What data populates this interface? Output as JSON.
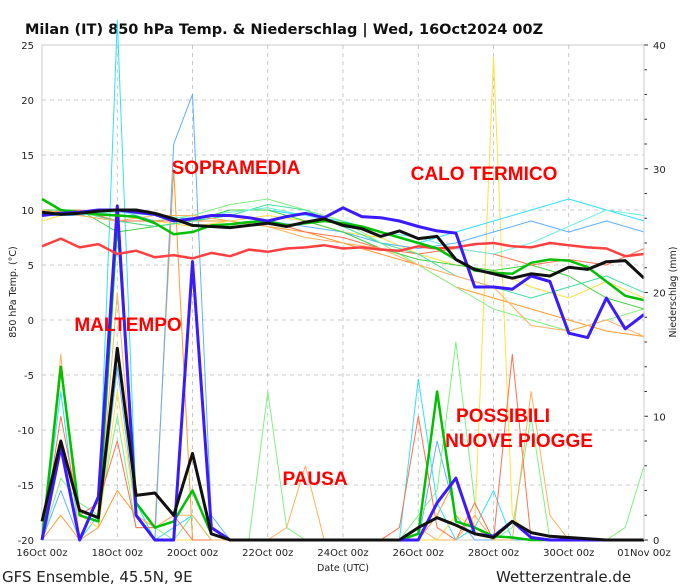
{
  "chart_data": {
    "type": "line",
    "title": "Milan  (IT)  850 hPa Temp. & Niederschlag | Wed, 16Oct2024 00Z",
    "xlabel": "Date (UTC)",
    "ylabel": "850 hPa Temp. (°C)",
    "y2label": "Niederschlag (mm)",
    "footer_left": "GFS Ensemble, 45.5N, 9E",
    "footer_right": "Wetterzentrale.de",
    "xlim_days": [
      0,
      16
    ],
    "x_step_days": 0.5,
    "xticks": [
      "16Oct 00z",
      "18Oct 00z",
      "20Oct 00z",
      "22Oct 00z",
      "24Oct 00z",
      "26Oct 00z",
      "28Oct 00z",
      "30Oct 00z",
      "01Nov 00z"
    ],
    "ylim": [
      -20,
      25
    ],
    "yticks": [
      "25",
      "20",
      "15",
      "10",
      "5",
      "0",
      "-5",
      "-10",
      "-15",
      "-20"
    ],
    "y2lim": [
      0,
      40
    ],
    "y2ticks": [
      "40",
      "30",
      "20",
      "10",
      "0"
    ],
    "grid": true,
    "annotations": [
      "SOPRAMEDIA",
      "CALO TERMICO",
      "MALTEMPO",
      "POSSIBILI",
      "NUOVE PIOGGE",
      "PAUSA"
    ],
    "annotation_color": "#ff0000",
    "temp_series": [
      {
        "name": "climatology",
        "color": "#ff4040",
        "width": 2.5,
        "values": [
          6.7,
          7.4,
          6.6,
          6.9,
          6,
          6.3,
          5.7,
          5.9,
          5.6,
          6.1,
          5.8,
          6.4,
          6.2,
          6.5,
          6.6,
          6.8,
          6.5,
          6.6,
          6.4,
          6.3,
          6.7,
          6.5,
          6.6,
          6.9,
          7,
          6.7,
          6.6,
          7,
          6.8,
          6.6,
          6.5,
          5.8,
          6
        ]
      },
      {
        "name": "mean",
        "color": "#00c000",
        "width": 2.5,
        "values": [
          11,
          10,
          9.8,
          9.6,
          9.5,
          9.4,
          8.8,
          7.8,
          8,
          8.6,
          8.7,
          8.9,
          9,
          8.6,
          8.8,
          9,
          8.8,
          8.5,
          8,
          7.5,
          7,
          6.5,
          5.5,
          4.5,
          4.3,
          4.2,
          5.2,
          5.5,
          5.4,
          4.8,
          3.5,
          2.2,
          1.8
        ]
      },
      {
        "name": "operational",
        "color": "#3a1aff",
        "width": 3,
        "values": [
          9.5,
          9.7,
          9.8,
          10,
          10,
          9.8,
          9.6,
          9,
          9.2,
          9.5,
          9.5,
          9.3,
          9,
          9.4,
          9.7,
          9.3,
          10.2,
          9.4,
          9.3,
          9,
          8.5,
          8.1,
          7.9,
          3,
          3,
          2.8,
          4,
          3.5,
          -1.2,
          -1.6,
          2,
          -0.8,
          0.5
        ]
      },
      {
        "name": "control",
        "color": "#111111",
        "width": 3,
        "values": [
          9.8,
          9.6,
          9.7,
          9.9,
          10,
          10,
          9.7,
          9.2,
          8.6,
          8.5,
          8.4,
          8.6,
          8.8,
          8.5,
          8.9,
          9.2,
          8.6,
          8.3,
          7.6,
          8.1,
          7.4,
          7.6,
          5.5,
          4.6,
          4.2,
          3.8,
          4.2,
          4,
          4.8,
          4.6,
          5.3,
          5.4,
          3.8
        ]
      }
    ],
    "member_temp_step_days": 1,
    "member_temps": [
      {
        "color": "#ff9a30",
        "values": [
          10,
          10,
          9,
          8.5,
          9,
          9,
          8.5,
          8,
          7,
          6,
          5,
          3,
          2,
          1,
          0,
          -1,
          -1.5
        ]
      },
      {
        "color": "#30e0ff",
        "values": [
          9.5,
          10,
          9.5,
          9,
          9,
          10,
          10,
          9.5,
          9,
          8,
          7,
          8,
          9,
          10,
          11,
          10,
          9
        ]
      },
      {
        "color": "#80f080",
        "values": [
          10,
          9.5,
          9,
          9,
          9.5,
          10.5,
          11,
          10,
          9,
          7,
          5,
          3,
          1,
          0,
          -1,
          0,
          1
        ]
      },
      {
        "color": "#ffe040",
        "values": [
          9,
          10,
          9.5,
          9,
          8.5,
          9,
          9.5,
          9,
          8,
          7.5,
          6,
          5,
          4.5,
          3,
          2,
          3.5,
          2
        ]
      },
      {
        "color": "#60b0ff",
        "values": [
          9.5,
          9.5,
          10,
          9,
          9,
          9.5,
          9,
          8.5,
          8,
          7,
          6.5,
          7,
          8,
          9,
          8,
          9,
          8
        ]
      },
      {
        "color": "#40d040",
        "values": [
          10,
          10,
          8,
          8.5,
          9,
          10,
          10,
          9,
          8,
          6.5,
          5.5,
          5,
          4.5,
          5,
          4,
          2,
          1
        ]
      },
      {
        "color": "#ff7050",
        "values": [
          9.8,
          10,
          9,
          9,
          9,
          9.5,
          9,
          8,
          7.5,
          6.5,
          6,
          6.5,
          6,
          5,
          5.5,
          5,
          6.5
        ]
      },
      {
        "color": "#40e0a0",
        "values": [
          9.5,
          9.8,
          9,
          8.5,
          9,
          9.5,
          10.5,
          10,
          8.5,
          7,
          6,
          4,
          3,
          2,
          3,
          4,
          2.5
        ]
      },
      {
        "color": "#ffb060",
        "values": [
          10,
          9.5,
          9,
          9.5,
          9.5,
          9,
          8.5,
          7.5,
          7,
          6.5,
          5,
          4,
          3,
          -0.5,
          -1,
          0,
          -1.5
        ]
      },
      {
        "color": "#70f0e0",
        "values": [
          9.6,
          9.6,
          9.8,
          9.5,
          9.2,
          9.8,
          10.2,
          9.5,
          8.8,
          8,
          7.5,
          6.5,
          6,
          7,
          8.5,
          10,
          9.5
        ]
      }
    ],
    "precip_series": [
      {
        "name": "mean",
        "color": "#00c000",
        "width": 2.5,
        "values": [
          0,
          14,
          2,
          1.5,
          26,
          3,
          1,
          1.5,
          4,
          0.5,
          0,
          0,
          0,
          0,
          0,
          0,
          0,
          0,
          0,
          0,
          0.5,
          12,
          1.5,
          1,
          0.3,
          0.2,
          0,
          0,
          0,
          0,
          0,
          0,
          0
        ]
      },
      {
        "name": "operational",
        "color": "#3a1aff",
        "width": 3,
        "values": [
          0,
          7.5,
          0,
          3.5,
          27,
          2,
          0,
          0,
          22.5,
          1,
          0,
          0,
          0,
          0,
          0,
          0,
          0,
          0,
          0,
          0,
          0,
          3,
          5,
          0.5,
          0.3,
          1.5,
          0.2,
          0,
          0,
          0,
          0,
          0,
          0
        ]
      },
      {
        "name": "control",
        "color": "#111111",
        "width": 3,
        "values": [
          1.5,
          8,
          2.4,
          1.8,
          15.5,
          3.6,
          3.8,
          2,
          7,
          0.5,
          0,
          0,
          0,
          0,
          0,
          0,
          0,
          0,
          0,
          0,
          1,
          1.8,
          1.2,
          0.5,
          0.2,
          1.5,
          0.6,
          0.3,
          0.2,
          0.1,
          0,
          0,
          0
        ]
      }
    ],
    "member_precip": [
      {
        "color": "#ff9a30",
        "values": [
          0,
          2,
          0,
          1,
          4,
          2,
          1,
          30,
          0,
          0,
          0,
          0,
          0,
          0,
          0,
          0,
          0,
          0,
          0,
          0,
          0,
          2,
          5,
          1,
          0,
          0,
          0,
          0,
          0,
          0,
          0,
          0,
          0
        ]
      },
      {
        "color": "#30e0ff",
        "values": [
          0,
          12,
          0,
          2,
          42,
          3,
          0,
          1,
          2,
          0,
          0,
          0,
          0,
          0,
          0,
          0,
          0,
          0,
          0,
          0,
          13,
          3,
          0,
          1,
          4,
          0,
          0,
          0,
          0,
          0,
          0,
          0,
          0
        ]
      },
      {
        "color": "#60b0ff",
        "values": [
          0,
          4,
          0,
          1,
          14,
          2,
          0,
          32,
          36,
          2,
          0,
          0,
          0,
          0,
          0,
          0,
          0,
          0,
          0,
          0,
          0,
          8,
          2,
          0,
          0,
          0,
          0,
          0,
          0,
          0,
          0,
          0,
          0
        ]
      },
      {
        "color": "#ffe040",
        "values": [
          0,
          8,
          2,
          1,
          12,
          2,
          0,
          0,
          0,
          0,
          0,
          0,
          0,
          0,
          0,
          0,
          0,
          0,
          0,
          0,
          0,
          0,
          2,
          1,
          39,
          2,
          0,
          0,
          0,
          0,
          0,
          0,
          0
        ]
      },
      {
        "color": "#80f080",
        "values": [
          0,
          5,
          3,
          2,
          10,
          1,
          1,
          0,
          2,
          0,
          0,
          0,
          12,
          1,
          0,
          0,
          0,
          0,
          0,
          0,
          2,
          4,
          16,
          3,
          0,
          1,
          10,
          0,
          0,
          0,
          0,
          1,
          6
        ]
      },
      {
        "color": "#ff7050",
        "values": [
          0,
          10,
          2,
          3,
          8,
          1,
          1,
          2,
          0,
          0,
          0,
          0,
          0,
          0,
          0,
          0,
          0,
          0,
          0,
          1,
          10,
          1,
          0,
          3,
          0,
          15,
          0,
          0,
          0,
          0,
          0,
          0,
          0
        ]
      },
      {
        "color": "#ffb060",
        "values": [
          0,
          15,
          0,
          1,
          20,
          2,
          1,
          2,
          2,
          0,
          0,
          0,
          0,
          1,
          6,
          0,
          0,
          0,
          0,
          0,
          1,
          0,
          0,
          2,
          0,
          0,
          12,
          2,
          0,
          0,
          0,
          0,
          0
        ]
      }
    ]
  }
}
